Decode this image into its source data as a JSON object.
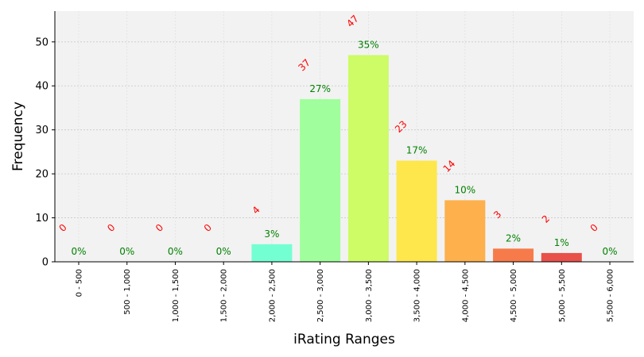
{
  "chart_data": {
    "type": "bar",
    "title": "",
    "xlabel": "iRating Ranges",
    "ylabel": "Frequency",
    "categories": [
      "0 - 500",
      "500 - 1,000",
      "1,000 - 1,500",
      "1,500 - 2,000",
      "2,000 - 2,500",
      "2,500 - 3,000",
      "3,000 - 3,500",
      "3,500 - 4,000",
      "4,000 - 4,500",
      "4,500 - 5,000",
      "5,000 - 5,500",
      "5,500 - 6,000"
    ],
    "values": [
      0,
      0,
      0,
      0,
      4,
      37,
      47,
      23,
      14,
      3,
      2,
      0
    ],
    "count_labels": [
      "0",
      "0",
      "0",
      "0",
      "4",
      "37",
      "47",
      "23",
      "14",
      "3",
      "2",
      "0"
    ],
    "percent_labels": [
      "0%",
      "0%",
      "0%",
      "0%",
      "3%",
      "27%",
      "35%",
      "17%",
      "10%",
      "2%",
      "1%",
      "0%"
    ],
    "bar_colors": [
      "#7fb0ff",
      "#7fc8ff",
      "#7fe0ff",
      "#7ff8e8",
      "#74ffd2",
      "#a0ff9c",
      "#cdfc66",
      "#fde74c",
      "#fdb04c",
      "#f77b4a",
      "#e85149",
      "#d03030"
    ],
    "count_label_color": "#ff0000",
    "percent_label_color": "#008000",
    "ylim": [
      0,
      57
    ],
    "yticks": [
      0,
      10,
      20,
      30,
      40,
      50
    ],
    "grid": true,
    "plot_background": "#f2f2f2"
  }
}
